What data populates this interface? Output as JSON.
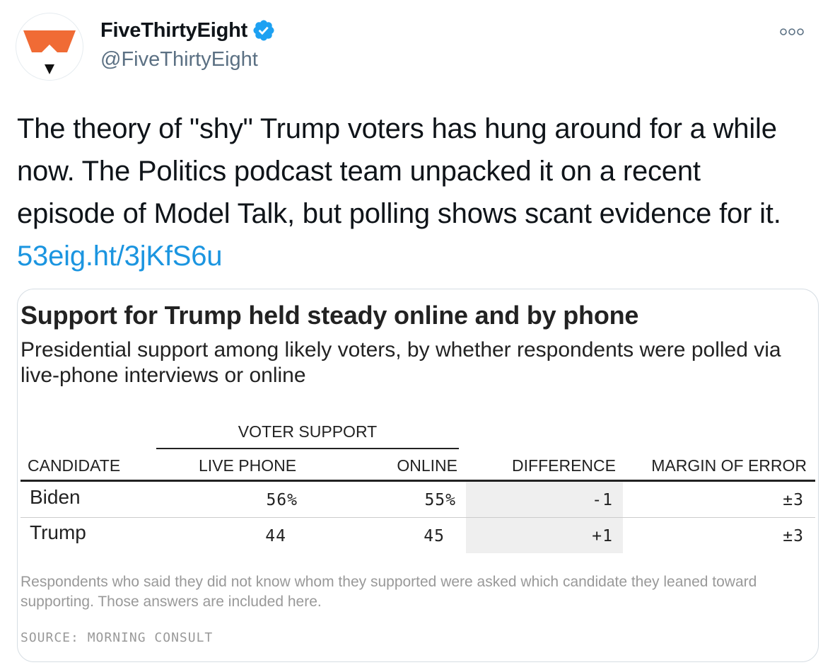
{
  "author": {
    "display_name": "FiveThirtyEight",
    "handle": "@FiveThirtyEight",
    "verified": true,
    "avatar_icon": "fivethirtyeight-fox-logo-icon"
  },
  "tweet": {
    "text": "The theory of \"shy\" Trump voters has hung around for a while now. The Politics podcast team unpacked it on a recent episode of Model Talk, but polling shows scant evidence for it. ",
    "link_text": "53eig.ht/3jKfS6u"
  },
  "colors": {
    "link": "#1b95e0",
    "verified_badge": "#1da1f2",
    "logo_orange": "#f06b35",
    "muted_text": "#5b7083",
    "difference_shade": "#efefef"
  },
  "card": {
    "title": "Support for Trump held steady online and by phone",
    "subtitle": "Presidential support among likely voters, by whether respondents were polled via live-phone interviews or online",
    "group_header": "VOTER SUPPORT",
    "columns": [
      "CANDIDATE",
      "LIVE PHONE",
      "ONLINE",
      "DIFFERENCE",
      "MARGIN OF ERROR"
    ],
    "rows": [
      {
        "candidate": "Biden",
        "live_phone": "56%",
        "online": "55%",
        "difference": "-1",
        "margin_of_error": "±3"
      },
      {
        "candidate": "Trump",
        "live_phone": "44",
        "online": "45",
        "difference": "+1",
        "margin_of_error": "±3"
      }
    ],
    "footnote": "Respondents who said they did not know whom they supported were asked which candidate they leaned toward supporting. Those answers are included here.",
    "source": "SOURCE: MORNING CONSULT"
  }
}
